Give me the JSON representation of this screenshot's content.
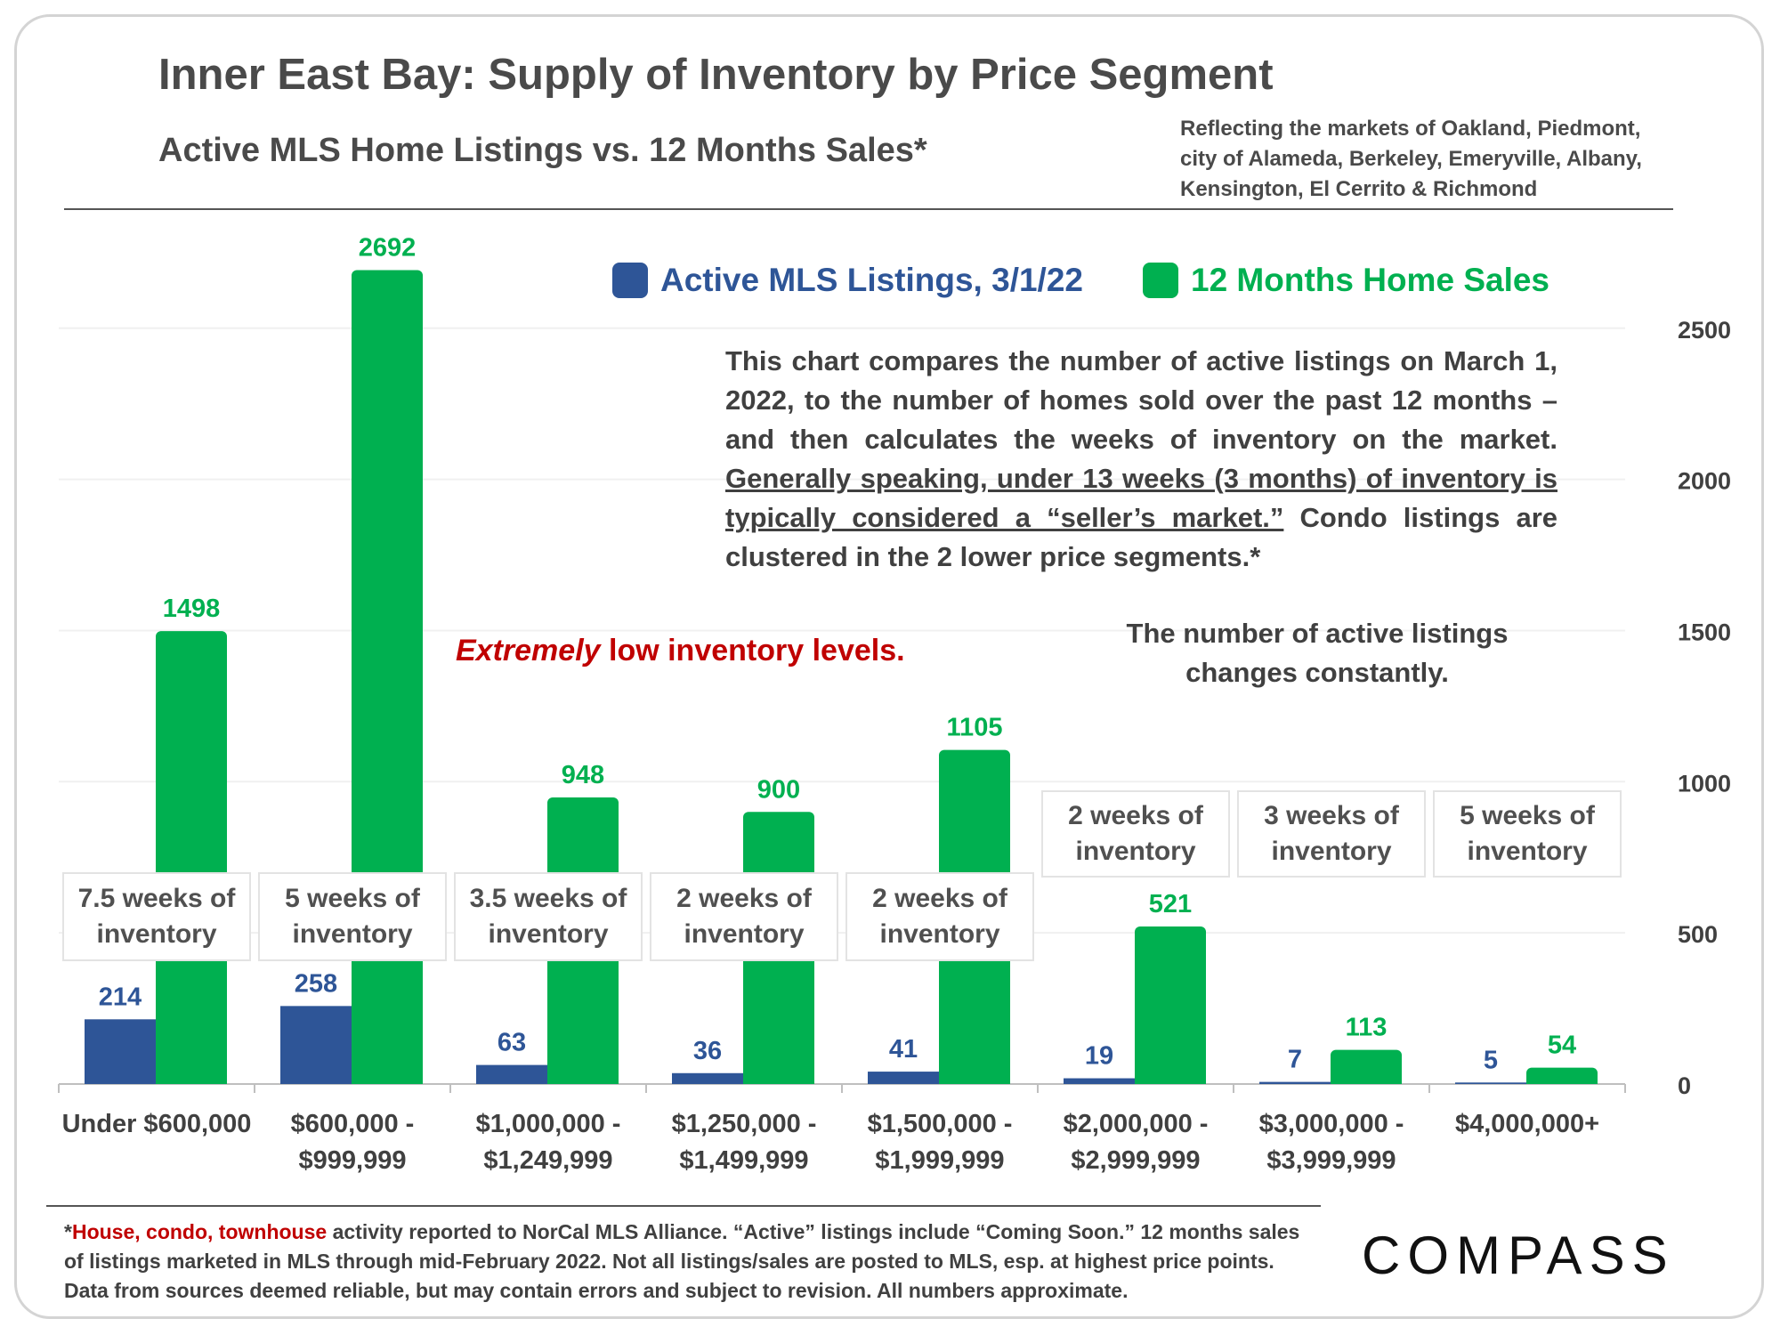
{
  "header": {
    "title": "Inner East Bay: Supply of Inventory by Price Segment",
    "subtitle": "Active MLS Home Listings vs. 12 Months Sales*",
    "region_lines": [
      "Reflecting the markets of Oakland, Piedmont,",
      "city of Alameda, Berkeley, Emeryville, Albany,",
      "Kensington, El Cerrito & Richmond"
    ]
  },
  "description": {
    "part1": "This chart compares the number of active listings on March 1, 2022, to the number of homes sold over the past 12 months – and then calculates the weeks of inventory on the market.",
    "underlined": "Generally speaking, under 13 weeks (3 months) of inventory is typically considered a “seller’s market.”",
    "part2": "Condo listings are clustered in the 2 lower price segments.*"
  },
  "callout": {
    "emphasis": "Extremely",
    "rest": "low inventory levels."
  },
  "note": "The number of active listings changes constantly.",
  "colors": {
    "active": "#2e5597",
    "sales": "#00b050",
    "callout": "#c00000"
  },
  "weeks_of_inventory": [
    [
      "7.5 weeks of",
      "inventory"
    ],
    [
      "5 weeks of",
      "inventory"
    ],
    [
      "3.5 weeks of",
      "inventory"
    ],
    [
      "2 weeks of",
      "inventory"
    ],
    [
      "2 weeks of",
      "inventory"
    ],
    [
      "2 weeks of",
      "inventory"
    ],
    [
      "3 weeks of",
      "inventory"
    ],
    [
      "5 weeks of",
      "inventory"
    ]
  ],
  "chart_data": {
    "type": "bar",
    "categories": [
      [
        "Under $600,000"
      ],
      [
        "$600,000 -",
        "$999,999"
      ],
      [
        "$1,000,000 -",
        "$1,249,999"
      ],
      [
        "$1,250,000 -",
        "$1,499,999"
      ],
      [
        "$1,500,000 -",
        "$1,999,999"
      ],
      [
        "$2,000,000 -",
        "$2,999,999"
      ],
      [
        "$3,000,000 -",
        "$3,999,999"
      ],
      [
        "$4,000,000+"
      ]
    ],
    "series": [
      {
        "name": "Active MLS Listings, 3/1/22",
        "color": "#2e5597",
        "values": [
          214,
          258,
          63,
          36,
          41,
          19,
          7,
          5
        ]
      },
      {
        "name": "12 Months Home Sales",
        "color": "#00b050",
        "values": [
          1498,
          2692,
          948,
          900,
          1105,
          521,
          113,
          54
        ]
      }
    ],
    "ylim": [
      0,
      2750
    ],
    "yticks": [
      0,
      500,
      1000,
      1500,
      2000,
      2500
    ],
    "y_axis_side": "right",
    "grid": true
  },
  "footnote": {
    "star": "*",
    "highlight": "House, condo, townhouse",
    "text": " activity reported to NorCal MLS Alliance. “Active” listings include “Coming Soon.” 12 months sales of listings marketed in MLS through mid-February 2022. Not all listings/sales are posted to MLS, esp. at highest price points. Data from sources deemed reliable, but may contain errors and subject to revision.  All numbers approximate."
  },
  "logo": "COMPASS"
}
